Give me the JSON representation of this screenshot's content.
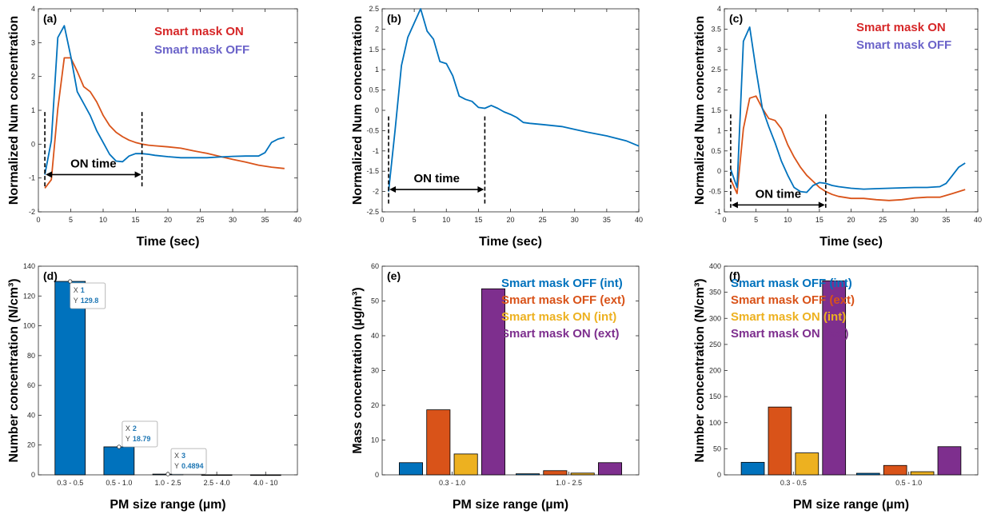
{
  "colors": {
    "blue": "#0072BD",
    "orange": "#D95319",
    "yellow": "#EDB120",
    "purple": "#7E2F8E",
    "legend_on": "#D62728",
    "legend_off": "#6B63C9",
    "tip_text": "#1F77B4"
  },
  "chart_data": [
    {
      "id": "a",
      "type": "line",
      "label": "(a)",
      "xlabel": "Time (sec)",
      "ylabel": "Normalized Num concentration",
      "xlim": [
        0,
        40
      ],
      "ylim": [
        -2,
        4
      ],
      "xticks": [
        0,
        5,
        10,
        15,
        20,
        25,
        30,
        35,
        40
      ],
      "yticks": [
        -2,
        -1,
        0,
        1,
        2,
        3,
        4
      ],
      "series": [
        {
          "name": "Smart mask ON",
          "color": "orange",
          "x": [
            1,
            2,
            3,
            4,
            5,
            6,
            7,
            8,
            9,
            10,
            11,
            12,
            13,
            14,
            15,
            16,
            17,
            18,
            20,
            22,
            24,
            26,
            28,
            30,
            32,
            34,
            36,
            38
          ],
          "y": [
            -1.3,
            -1.05,
            1.05,
            2.55,
            2.55,
            2.15,
            1.7,
            1.55,
            1.25,
            0.85,
            0.55,
            0.35,
            0.22,
            0.12,
            0.05,
            0.0,
            -0.03,
            -0.05,
            -0.08,
            -0.12,
            -0.2,
            -0.27,
            -0.36,
            -0.45,
            -0.53,
            -0.62,
            -0.68,
            -0.72
          ]
        },
        {
          "name": "Smart mask OFF",
          "color": "blue",
          "x": [
            1,
            2,
            3,
            4,
            5,
            6,
            7,
            8,
            9,
            10,
            11,
            12,
            13,
            14,
            15,
            16,
            17,
            18,
            20,
            22,
            24,
            26,
            28,
            30,
            32,
            34,
            35,
            36,
            37,
            38
          ],
          "y": [
            -0.9,
            0.1,
            3.15,
            3.5,
            2.6,
            1.55,
            1.2,
            0.85,
            0.4,
            0.05,
            -0.3,
            -0.5,
            -0.52,
            -0.35,
            -0.28,
            -0.28,
            -0.3,
            -0.33,
            -0.37,
            -0.4,
            -0.4,
            -0.4,
            -0.38,
            -0.36,
            -0.35,
            -0.35,
            -0.25,
            0.05,
            0.15,
            0.2
          ]
        }
      ],
      "legend": [
        {
          "text": "Smart mask ON",
          "color": "legend_on"
        },
        {
          "text": "Smart mask OFF",
          "color": "legend_off"
        }
      ],
      "annotation": {
        "text": "ON time",
        "x_start": 1,
        "x_end": 16,
        "y": -0.9,
        "dash_top": 0.95,
        "dash_bottom": -1.25
      }
    },
    {
      "id": "b",
      "type": "line",
      "label": "(b)",
      "xlabel": "Time (sec)",
      "ylabel": "Normalized Num concentration",
      "xlim": [
        0,
        40
      ],
      "ylim": [
        -2.5,
        2.5
      ],
      "xticks": [
        0,
        5,
        10,
        15,
        20,
        25,
        30,
        35,
        40
      ],
      "yticks": [
        -2.5,
        -2,
        -1.5,
        -1,
        -0.5,
        0,
        0.5,
        1,
        1.5,
        2,
        2.5
      ],
      "series": [
        {
          "name": "",
          "color": "blue",
          "x": [
            1,
            2,
            3,
            4,
            5,
            6,
            7,
            8,
            9,
            10,
            11,
            12,
            13,
            14,
            15,
            16,
            17,
            18,
            19,
            20,
            21,
            22,
            23,
            25,
            28,
            30,
            32,
            35,
            38,
            40
          ],
          "y": [
            -2.0,
            -0.5,
            1.1,
            1.8,
            2.15,
            2.5,
            1.95,
            1.75,
            1.2,
            1.15,
            0.85,
            0.35,
            0.27,
            0.22,
            0.07,
            0.05,
            0.12,
            0.05,
            -0.04,
            -0.1,
            -0.18,
            -0.3,
            -0.32,
            -0.35,
            -0.4,
            -0.47,
            -0.54,
            -0.63,
            -0.75,
            -0.88
          ]
        }
      ],
      "legend": [],
      "annotation": {
        "text": "ON time",
        "x_start": 1,
        "x_end": 16,
        "y": -1.95,
        "dash_top": -0.15,
        "dash_bottom": -2.3
      }
    },
    {
      "id": "c",
      "type": "line",
      "label": "(c)",
      "xlabel": "Time (sec)",
      "ylabel": "Normalized Num concentration",
      "xlim": [
        0,
        40
      ],
      "ylim": [
        -1,
        4
      ],
      "xticks": [
        0,
        5,
        10,
        15,
        20,
        25,
        30,
        35,
        40
      ],
      "yticks": [
        -1,
        -0.5,
        0,
        0.5,
        1,
        1.5,
        2,
        2.5,
        3,
        3.5,
        4
      ],
      "series": [
        {
          "name": "Smart mask ON",
          "color": "orange",
          "x": [
            1,
            2,
            3,
            4,
            5,
            6,
            7,
            8,
            9,
            10,
            11,
            12,
            13,
            14,
            15,
            16,
            17,
            18,
            20,
            22,
            24,
            26,
            28,
            30,
            32,
            34,
            36,
            38
          ],
          "y": [
            -0.2,
            -0.55,
            1.05,
            1.8,
            1.85,
            1.55,
            1.3,
            1.25,
            1.05,
            0.65,
            0.35,
            0.1,
            -0.1,
            -0.25,
            -0.4,
            -0.5,
            -0.57,
            -0.62,
            -0.67,
            -0.67,
            -0.7,
            -0.72,
            -0.7,
            -0.66,
            -0.64,
            -0.64,
            -0.55,
            -0.45
          ]
        },
        {
          "name": "Smart mask OFF",
          "color": "blue",
          "x": [
            1,
            2,
            3,
            4,
            5,
            6,
            7,
            8,
            9,
            10,
            11,
            12,
            13,
            14,
            15,
            16,
            17,
            18,
            20,
            22,
            24,
            26,
            28,
            30,
            32,
            34,
            35,
            36,
            37,
            38
          ],
          "y": [
            0.05,
            -0.4,
            3.2,
            3.55,
            2.5,
            1.55,
            1.1,
            0.7,
            0.25,
            -0.1,
            -0.4,
            -0.5,
            -0.52,
            -0.35,
            -0.28,
            -0.3,
            -0.35,
            -0.38,
            -0.42,
            -0.44,
            -0.43,
            -0.42,
            -0.41,
            -0.4,
            -0.4,
            -0.38,
            -0.3,
            -0.1,
            0.1,
            0.2
          ]
        }
      ],
      "legend": [
        {
          "text": "Smart mask ON",
          "color": "legend_on"
        },
        {
          "text": "Smart mask OFF",
          "color": "legend_off"
        }
      ],
      "annotation": {
        "text": "ON time",
        "x_start": 1,
        "x_end": 16,
        "y": -0.83,
        "dash_top": 1.4,
        "dash_bottom": -0.9
      }
    },
    {
      "id": "d",
      "type": "bar",
      "label": "(d)",
      "xlabel": "PM size range (µm)",
      "ylabel": "Number concentration (N/cm³)",
      "ylim": [
        0,
        140
      ],
      "yticks": [
        0,
        20,
        40,
        60,
        80,
        100,
        120,
        140
      ],
      "categories": [
        "0.3 - 0.5",
        "0.5 - 1.0",
        "1.0 - 2.5",
        "2.5 - 4.0",
        "4.0 - 10"
      ],
      "series": [
        {
          "name": "",
          "color": "blue",
          "values": [
            129.8,
            18.79,
            0.4894,
            0.05,
            0.02
          ]
        }
      ],
      "datatips": [
        {
          "index": 0,
          "x_label": "X",
          "x_value": "1",
          "y_label": "Y",
          "y_value": "129.8"
        },
        {
          "index": 1,
          "x_label": "X",
          "x_value": "2",
          "y_label": "Y",
          "y_value": "18.79"
        },
        {
          "index": 2,
          "x_label": "X",
          "x_value": "3",
          "y_label": "Y",
          "y_value": "0.4894"
        }
      ],
      "legend": []
    },
    {
      "id": "e",
      "type": "bar",
      "label": "(e)",
      "xlabel": "PM size range (µm)",
      "ylabel": "Mass concentration (µg/m³)",
      "ylim": [
        0,
        60
      ],
      "yticks": [
        0,
        10,
        20,
        30,
        40,
        50,
        60
      ],
      "categories": [
        "0.3 - 1.0",
        "1.0 - 2.5"
      ],
      "series": [
        {
          "name": "Smart mask OFF (int)",
          "color": "blue",
          "values": [
            3.5,
            0.3
          ]
        },
        {
          "name": "Smart mask OFF (ext)",
          "color": "orange",
          "values": [
            18.7,
            1.2
          ]
        },
        {
          "name": "Smart mask ON (int)",
          "color": "yellow",
          "values": [
            6.0,
            0.5
          ]
        },
        {
          "name": "Smart mask ON (ext)",
          "color": "purple",
          "values": [
            53.5,
            3.5
          ]
        }
      ],
      "legend": [
        {
          "text": "Smart mask OFF (int)",
          "color": "blue"
        },
        {
          "text": "Smart mask OFF (ext)",
          "color": "orange"
        },
        {
          "text": "Smart mask ON (int)",
          "color": "yellow"
        },
        {
          "text": "Smart mask ON (ext)",
          "color": "purple"
        }
      ]
    },
    {
      "id": "f",
      "type": "bar",
      "label": "(f)",
      "xlabel": "PM size range (µm)",
      "ylabel": "Number concentration (N/cm³)",
      "ylim": [
        0,
        400
      ],
      "yticks": [
        0,
        50,
        100,
        150,
        200,
        250,
        300,
        350,
        400
      ],
      "categories": [
        "0.3 - 0.5",
        "0.5 - 1.0"
      ],
      "series": [
        {
          "name": "Smart mask OFF (int)",
          "color": "blue",
          "values": [
            24,
            3
          ]
        },
        {
          "name": "Smart mask OFF (ext)",
          "color": "orange",
          "values": [
            130,
            18
          ]
        },
        {
          "name": "Smart mask ON (int)",
          "color": "yellow",
          "values": [
            42,
            6
          ]
        },
        {
          "name": "Smart mask ON (ext)",
          "color": "purple",
          "values": [
            372,
            54
          ]
        }
      ],
      "legend": [
        {
          "text": "Smart mask OFF (int)",
          "color": "blue"
        },
        {
          "text": "Smart mask OFF (ext)",
          "color": "orange"
        },
        {
          "text": "Smart mask ON (int)",
          "color": "yellow"
        },
        {
          "text": "Smart mask ON (ext)",
          "color": "purple"
        }
      ]
    }
  ]
}
